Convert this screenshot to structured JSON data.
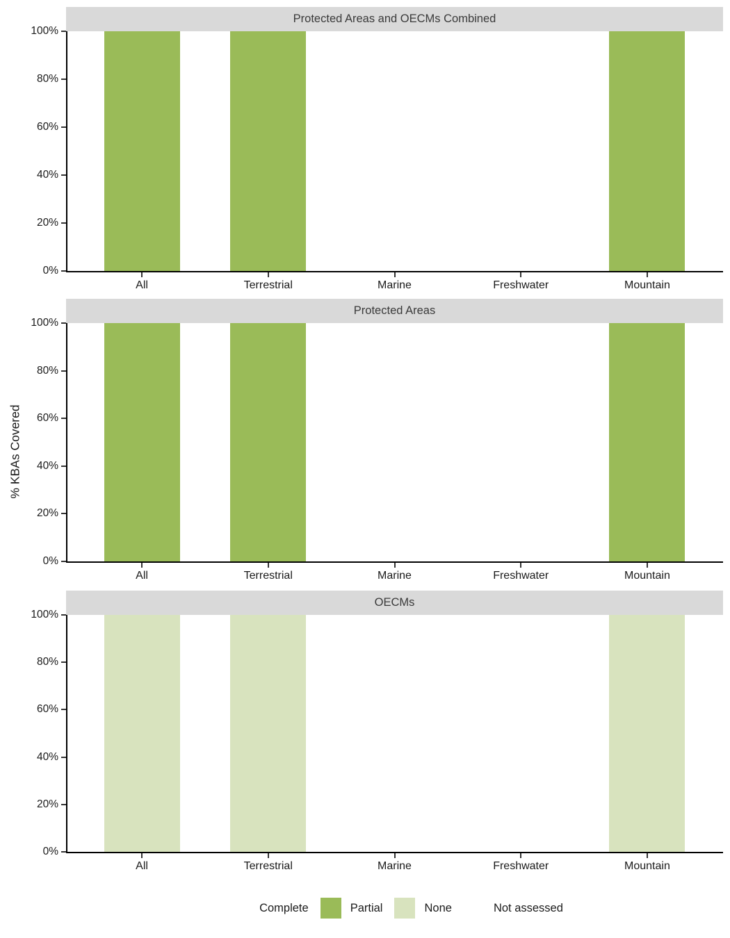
{
  "figure": {
    "y_axis_title": "% KBAs Covered"
  },
  "colors": {
    "partial_green": "#9ABB58",
    "none_light_green": "#D8E3BE",
    "strip_background": "#D9D9D9",
    "strip_text": "#3A3A3A",
    "axis_line": "#000000",
    "tick_mark": "#333333",
    "tick_text": "#1A1A1A",
    "background": "#FFFFFF"
  },
  "y_axis": {
    "tick_labels": [
      "0%",
      "20%",
      "40%",
      "60%",
      "80%",
      "100%"
    ]
  },
  "x_axis": {
    "categories": [
      "All",
      "Terrestrial",
      "Marine",
      "Freshwater",
      "Mountain"
    ]
  },
  "legend": {
    "items": [
      {
        "label": "Complete",
        "swatch_color": null
      },
      {
        "label": "Partial",
        "swatch_color": "#9ABB58"
      },
      {
        "label": "None",
        "swatch_color": "#D8E3BE"
      },
      {
        "label": "Not assessed",
        "swatch_color": null
      }
    ]
  },
  "chart_data": {
    "type": "bar",
    "title": "",
    "xlabel": "",
    "ylabel": "% KBAs Covered",
    "ylim": [
      0,
      100
    ],
    "y_tick_values": [
      0,
      20,
      40,
      60,
      80,
      100
    ],
    "y_tick_labels": [
      "0%",
      "20%",
      "40%",
      "60%",
      "80%",
      "100%"
    ],
    "grid": false,
    "legend_position": "bottom",
    "legend_categories": [
      "Complete",
      "Partial",
      "None",
      "Not assessed"
    ],
    "categories": [
      "All",
      "Terrestrial",
      "Marine",
      "Freshwater",
      "Mountain"
    ],
    "panels": [
      {
        "title": "Protected Areas and OECMs Combined",
        "fill_category": "Partial",
        "values": [
          100,
          100,
          0,
          0,
          100
        ]
      },
      {
        "title": "Protected Areas",
        "fill_category": "Partial",
        "values": [
          100,
          100,
          0,
          0,
          100
        ]
      },
      {
        "title": "OECMs",
        "fill_category": "None",
        "values": [
          100,
          100,
          0,
          0,
          100
        ]
      }
    ]
  }
}
